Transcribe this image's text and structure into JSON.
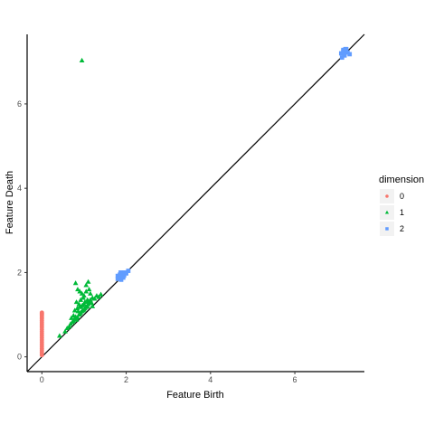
{
  "chart_data": {
    "type": "scatter",
    "title": "",
    "xlabel": "Feature Birth",
    "ylabel": "Feature Death",
    "xlim": [
      -0.35,
      7.65
    ],
    "ylim": [
      -0.35,
      7.65
    ],
    "x_ticks": [
      0,
      2,
      4,
      6
    ],
    "y_ticks": [
      0,
      2,
      4,
      6
    ],
    "x_tick_labels": [
      "0",
      "2",
      "4",
      "6"
    ],
    "y_tick_labels": [
      "0",
      "2",
      "4",
      "6"
    ],
    "grid": false,
    "diagonal": true,
    "legend": {
      "title": "dimension",
      "placement": "right",
      "entries": [
        "0",
        "1",
        "2"
      ]
    },
    "series": [
      {
        "name": "0",
        "color": "#F8766D",
        "shape": "circle",
        "x": [
          0,
          0,
          0,
          0,
          0,
          0,
          0,
          0,
          0,
          0,
          0,
          0,
          0,
          0,
          0,
          0,
          0,
          0,
          0,
          0,
          0,
          0,
          0,
          0,
          0,
          0
        ],
        "y": [
          0.04,
          0.08,
          0.12,
          0.16,
          0.2,
          0.25,
          0.3,
          0.35,
          0.4,
          0.45,
          0.5,
          0.55,
          0.6,
          0.65,
          0.7,
          0.74,
          0.78,
          0.82,
          0.86,
          0.9,
          0.93,
          0.96,
          0.99,
          1.01,
          1.03,
          1.05
        ]
      },
      {
        "name": "1",
        "color": "#00BA38",
        "shape": "triangle",
        "x": [
          0.95,
          0.42,
          0.55,
          0.6,
          0.65,
          0.68,
          0.72,
          0.75,
          0.78,
          0.8,
          0.82,
          0.85,
          0.88,
          0.9,
          0.92,
          0.95,
          0.98,
          1.0,
          1.02,
          1.05,
          1.08,
          1.1,
          1.12,
          1.15,
          1.18,
          1.2,
          1.25,
          1.3,
          1.35,
          1.4,
          0.8,
          0.85,
          0.9,
          0.95,
          1.0,
          1.05,
          1.1,
          0.82,
          0.88,
          0.92,
          0.98,
          1.05,
          1.12,
          0.78,
          0.84,
          0.9,
          0.96,
          1.02,
          1.08,
          1.15,
          0.7,
          0.75,
          0.86,
          0.93,
          1.0,
          1.1,
          1.2
        ],
        "y": [
          7.03,
          0.5,
          0.6,
          0.68,
          0.72,
          0.78,
          0.82,
          0.85,
          0.9,
          0.95,
          0.88,
          0.93,
          1.0,
          1.02,
          1.05,
          1.08,
          1.1,
          1.12,
          1.15,
          1.18,
          1.2,
          1.25,
          1.3,
          1.35,
          1.28,
          1.4,
          1.38,
          1.45,
          1.42,
          1.48,
          1.75,
          1.6,
          1.55,
          1.5,
          1.45,
          1.7,
          1.78,
          1.3,
          1.25,
          1.35,
          1.4,
          1.55,
          1.6,
          1.1,
          1.15,
          1.2,
          1.22,
          1.3,
          1.35,
          1.5,
          0.92,
          0.98,
          1.08,
          1.18,
          1.25,
          1.32,
          1.2
        ]
      },
      {
        "name": "2",
        "color": "#619CFF",
        "shape": "square",
        "x": [
          1.8,
          1.82,
          1.85,
          1.88,
          1.9,
          1.92,
          1.95,
          1.8,
          1.85,
          1.9,
          1.95,
          2.0,
          1.82,
          1.88,
          1.93,
          2.05,
          1.87,
          7.1,
          7.15,
          7.2,
          7.25,
          7.3,
          7.15,
          7.22,
          7.18,
          7.12
        ],
        "y": [
          1.85,
          1.88,
          1.9,
          1.92,
          1.95,
          1.98,
          2.0,
          1.92,
          1.95,
          1.97,
          1.93,
          1.98,
          1.87,
          1.83,
          1.88,
          2.04,
          2.0,
          7.2,
          7.25,
          7.3,
          7.22,
          7.18,
          7.28,
          7.3,
          7.15,
          7.1
        ]
      }
    ]
  }
}
